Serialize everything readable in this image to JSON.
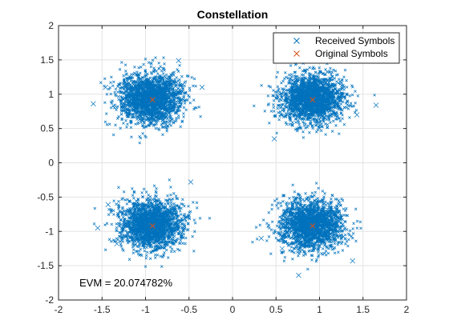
{
  "window": {
    "background": "#ffffff"
  },
  "chart_data": {
    "type": "scatter",
    "title": "Constellation",
    "xlabel": "",
    "ylabel": "",
    "xlim": [
      -2,
      2
    ],
    "ylim": [
      -2,
      2
    ],
    "x_ticks": [
      "-2",
      "-1.5",
      "-1",
      "-0.5",
      "0",
      "0.5",
      "1",
      "1.5",
      "2"
    ],
    "y_ticks": [
      "-2",
      "-1.5",
      "-1",
      "-0.5",
      "0",
      "0.5",
      "1",
      "1.5",
      "2"
    ],
    "grid": true,
    "legend_position": "top-right",
    "annotation": "EVM = 20.074782%",
    "series": [
      {
        "name": "Received Symbols",
        "marker": "x",
        "color": "#0072BD",
        "clusters": [
          {
            "center": [
              0.92,
              0.92
            ],
            "spread": 0.18
          },
          {
            "center": [
              -0.92,
              0.92
            ],
            "spread": 0.18
          },
          {
            "center": [
              0.92,
              -0.92
            ],
            "spread": 0.18
          },
          {
            "center": [
              -0.92,
              -0.92
            ],
            "spread": 0.18
          }
        ],
        "points_per_cluster": 2000,
        "outliers": [
          [
            1.65,
            0.84
          ],
          [
            0.76,
            -1.64
          ],
          [
            -1.6,
            0.86
          ],
          [
            -1.46,
            1.1
          ],
          [
            -1.43,
            -0.61
          ],
          [
            -0.48,
            -0.28
          ],
          [
            -0.35,
            1.1
          ],
          [
            0.48,
            0.35
          ],
          [
            0.33,
            -1.1
          ],
          [
            1.38,
            -1.43
          ],
          [
            -1.33,
            -1.18
          ],
          [
            1.43,
            0.7
          ],
          [
            -0.62,
            1.49
          ],
          [
            0.57,
            -1.25
          ],
          [
            -1.55,
            -0.95
          ]
        ]
      },
      {
        "name": "Original Symbols",
        "marker": "x",
        "color": "#D95319",
        "points": [
          [
            0.92,
            0.92
          ],
          [
            -0.92,
            0.92
          ],
          [
            0.92,
            -0.92
          ],
          [
            -0.92,
            -0.92
          ]
        ]
      }
    ]
  }
}
